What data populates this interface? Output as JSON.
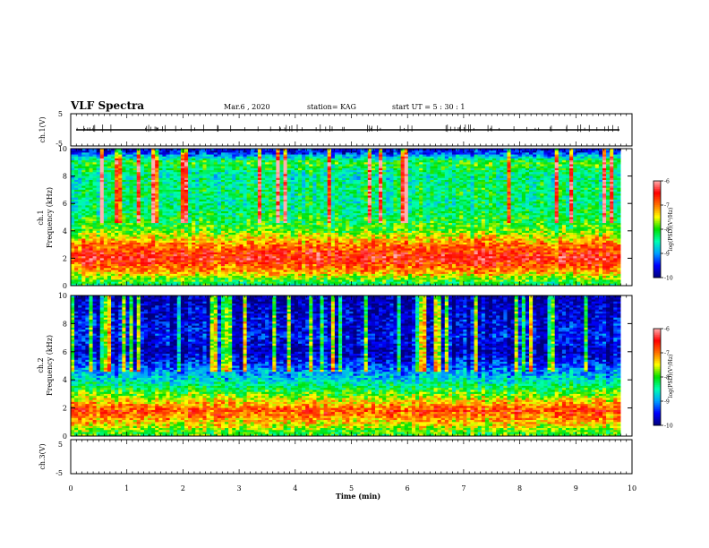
{
  "header": {
    "title": "VLF Spectra",
    "date": "Mar.6 , 2020",
    "station": "station= KAG",
    "start": "start  UT =   5 : 30 : 1"
  },
  "chart_data": [
    {
      "type": "line",
      "panel": "ch1-waveform",
      "ylabel": "ch.1(V)",
      "ylim": [
        -5,
        5
      ],
      "yticks": [
        "5",
        "-5"
      ],
      "xlim": [
        0,
        10
      ],
      "series": [
        {
          "values": []
        }
      ]
    },
    {
      "type": "heatmap",
      "panel": "ch1-spectrogram",
      "ylabel": "ch.1\nFrequency (kHz)",
      "ylabel_lines": [
        "ch.1",
        "Frequency  (kHz)"
      ],
      "ylim": [
        0,
        10
      ],
      "yticks": [
        "0",
        "2",
        "4",
        "6",
        "8",
        "10"
      ],
      "xlim": [
        0,
        10
      ],
      "time_end_min": 9.8,
      "colorbar": {
        "label": "log(PSD)(V²/Hz)",
        "range": [
          -10,
          -6
        ],
        "ticks": [
          "-6",
          "-7",
          "-8",
          "-9",
          "-10"
        ]
      },
      "freq_profile_log_psd": [
        {
          "freq": 0.2,
          "value": -8.2
        },
        {
          "freq": 1.0,
          "value": -7.2
        },
        {
          "freq": 2.0,
          "value": -6.5
        },
        {
          "freq": 3.0,
          "value": -7.0
        },
        {
          "freq": 4.0,
          "value": -7.9
        },
        {
          "freq": 5.0,
          "value": -8.2
        },
        {
          "freq": 6.0,
          "value": -8.4
        },
        {
          "freq": 7.0,
          "value": -8.3
        },
        {
          "freq": 8.0,
          "value": -8.5
        },
        {
          "freq": 9.0,
          "value": -8.0
        },
        {
          "freq": 9.8,
          "value": -9.6
        }
      ]
    },
    {
      "type": "heatmap",
      "panel": "ch2-spectrogram",
      "ylabel": "ch.2\nFrequency (kHz)",
      "ylabel_lines": [
        "ch.2",
        "Frequency  (kHz)"
      ],
      "ylim": [
        0,
        10
      ],
      "yticks": [
        "0",
        "2",
        "4",
        "6",
        "8",
        "10"
      ],
      "xlim": [
        0,
        10
      ],
      "time_end_min": 9.8,
      "colorbar": {
        "label": "log(PSD)(V²/Hz)",
        "range": [
          -10,
          -6
        ],
        "ticks": [
          "-6",
          "-7",
          "-8",
          "-9",
          "-10"
        ]
      },
      "freq_profile_log_psd": [
        {
          "freq": 0.2,
          "value": -8.0
        },
        {
          "freq": 1.0,
          "value": -7.3
        },
        {
          "freq": 1.8,
          "value": -6.8
        },
        {
          "freq": 2.5,
          "value": -7.4
        },
        {
          "freq": 3.0,
          "value": -7.9
        },
        {
          "freq": 4.0,
          "value": -8.7
        },
        {
          "freq": 5.0,
          "value": -9.3
        },
        {
          "freq": 6.0,
          "value": -9.8
        },
        {
          "freq": 7.0,
          "value": -9.5
        },
        {
          "freq": 8.0,
          "value": -9.6
        },
        {
          "freq": 9.0,
          "value": -9.7
        },
        {
          "freq": 9.8,
          "value": -9.9
        }
      ]
    },
    {
      "type": "line",
      "panel": "ch3-waveform",
      "ylabel": "ch.3(V)",
      "ylim": [
        -5,
        5
      ],
      "yticks": [
        "5",
        "-5"
      ],
      "xlim": [
        0,
        10
      ],
      "series": []
    }
  ],
  "xaxis": {
    "label": "Time  (min)",
    "range": [
      0,
      10
    ],
    "ticks": [
      "0",
      "1",
      "2",
      "3",
      "4",
      "5",
      "6",
      "7",
      "8",
      "9",
      "10"
    ]
  },
  "colors": {
    "scale": [
      "#00007a",
      "#0000ff",
      "#00a0ff",
      "#00ffb0",
      "#00e000",
      "#ffff00",
      "#ff7000",
      "#ff0000",
      "#ffb0b0"
    ]
  }
}
